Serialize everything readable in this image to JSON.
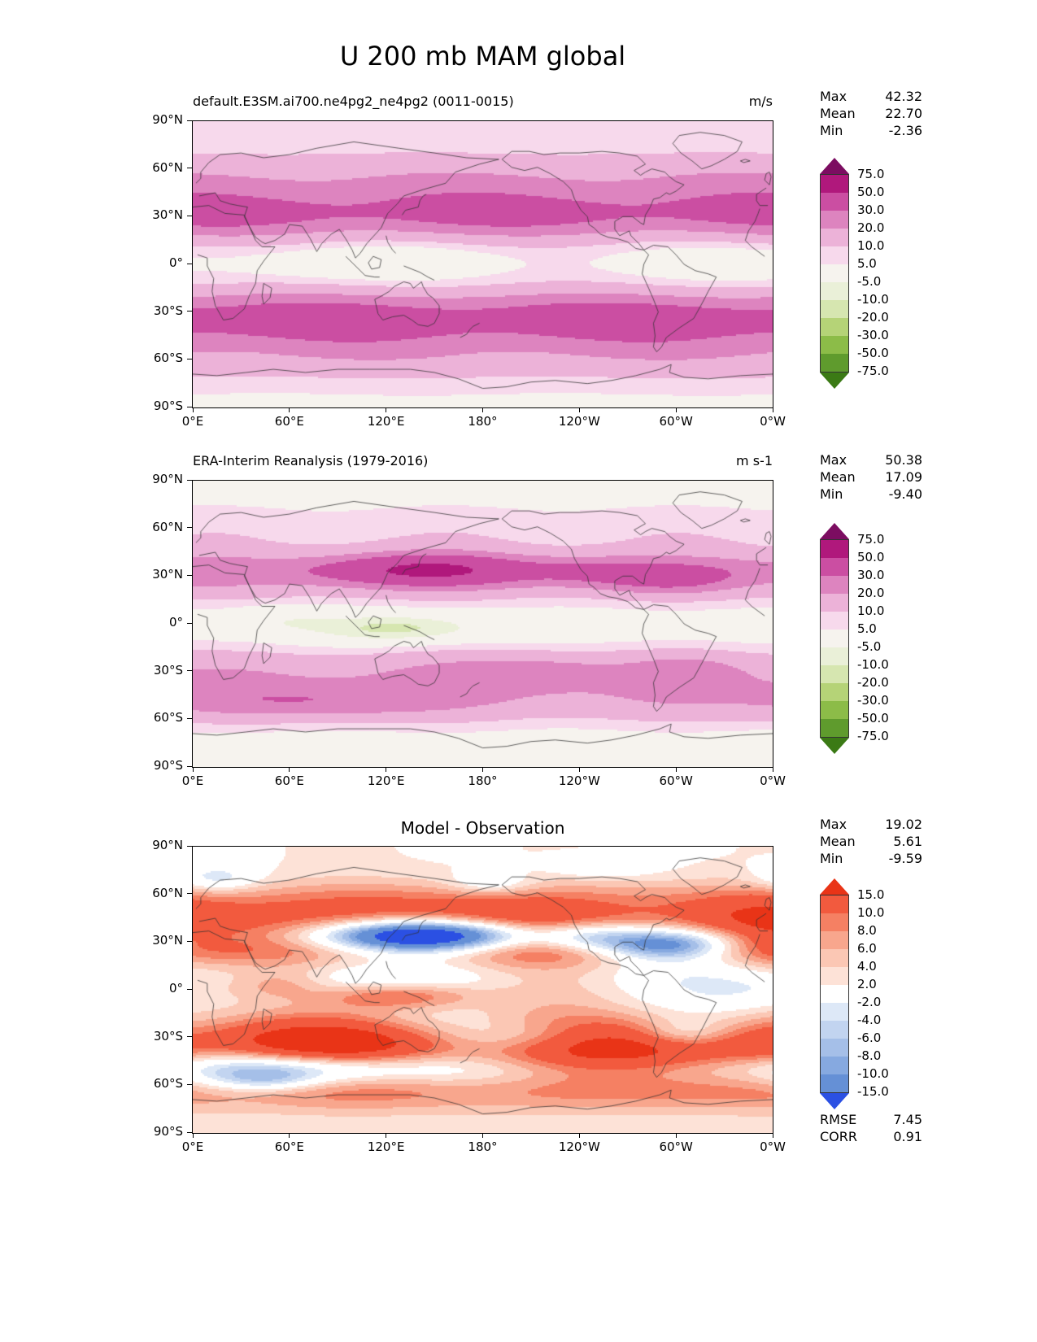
{
  "title": "U 200 mb MAM global",
  "axes": {
    "lon_ticks": [
      {
        "deg": 0,
        "label": "0°E"
      },
      {
        "deg": 60,
        "label": "60°E"
      },
      {
        "deg": 120,
        "label": "120°E"
      },
      {
        "deg": 180,
        "label": "180°"
      },
      {
        "deg": 240,
        "label": "120°W"
      },
      {
        "deg": 300,
        "label": "60°W"
      },
      {
        "deg": 360,
        "label": "0°W"
      }
    ],
    "lat_ticks": [
      {
        "deg": 90,
        "label": "90°N"
      },
      {
        "deg": 60,
        "label": "60°N"
      },
      {
        "deg": 30,
        "label": "30°N"
      },
      {
        "deg": 0,
        "label": "0°"
      },
      {
        "deg": -30,
        "label": "30°S"
      },
      {
        "deg": -60,
        "label": "60°S"
      },
      {
        "deg": -90,
        "label": "90°S"
      }
    ]
  },
  "colormaps": {
    "pink_green": {
      "levels_ascending": [
        -75,
        -50,
        -30,
        -20,
        -10,
        -5,
        5,
        10,
        20,
        30,
        50,
        75
      ],
      "labels_top_to_bottom": [
        "75.0",
        "50.0",
        "30.0",
        "20.0",
        "10.0",
        "5.0",
        "-5.0",
        "-10.0",
        "-20.0",
        "-30.0",
        "-50.0",
        "-75.0"
      ],
      "colors_top_to_bottom": [
        "#7c0d61",
        "#b0187c",
        "#cb4ea2",
        "#dd84bf",
        "#ecb2d8",
        "#f7d9ec",
        "#f6f3ee",
        "#eaf0d8",
        "#d6e6b0",
        "#b5d377",
        "#8cbc48",
        "#5f9b2d",
        "#3b7a15"
      ]
    },
    "red_blue": {
      "levels_ascending": [
        -15,
        -10,
        -8,
        -6,
        -4,
        -2,
        2,
        4,
        6,
        8,
        10,
        15
      ],
      "labels_top_to_bottom": [
        "15.0",
        "10.0",
        "8.0",
        "6.0",
        "4.0",
        "2.0",
        "-2.0",
        "-4.0",
        "-6.0",
        "-8.0",
        "-10.0",
        "-15.0"
      ],
      "colors_top_to_bottom": [
        "#e93417",
        "#f25a3e",
        "#f58063",
        "#f8a68d",
        "#fbc7b4",
        "#fde2d7",
        "#ffffff",
        "#dde8f7",
        "#c2d4f0",
        "#a5bfe8",
        "#86a9e0",
        "#6590d6",
        "#2b50e3"
      ]
    }
  },
  "panels": [
    {
      "title": "default.E3SM.ai700.ne4pg2_ne4pg2 (0011-0015)",
      "units": "m/s",
      "colormap": "pink_green",
      "field": "model",
      "stats": [
        {
          "label": "Max",
          "value": "42.32"
        },
        {
          "label": "Mean",
          "value": "22.70"
        },
        {
          "label": "Min",
          "value": "-2.36"
        }
      ]
    },
    {
      "title": "ERA-Interim Reanalysis (1979-2016)",
      "units": "m s-1",
      "colormap": "pink_green",
      "field": "obs",
      "stats": [
        {
          "label": "Max",
          "value": "50.38"
        },
        {
          "label": "Mean",
          "value": "17.09"
        },
        {
          "label": "Min",
          "value": "-9.40"
        }
      ]
    },
    {
      "title": "Model - Observation",
      "units": "",
      "colormap": "red_blue",
      "field": "diff",
      "stats": [
        {
          "label": "Max",
          "value": "19.02"
        },
        {
          "label": "Mean",
          "value": "5.61"
        },
        {
          "label": "Min",
          "value": "-9.59"
        }
      ],
      "metrics": [
        {
          "label": "RMSE",
          "value": "7.45"
        },
        {
          "label": "CORR",
          "value": "0.91"
        }
      ]
    }
  ],
  "chart_data": [
    {
      "type": "heatmap",
      "subtype": "filled_contour_global_map",
      "suptitle": "U 200 mb MAM global",
      "title": "default.E3SM.ai700.ne4pg2_ne4pg2 (0011-0015)",
      "units": "m/s",
      "variable": "zonal wind U at 200 mb, MAM mean",
      "lon_range": [
        0,
        360
      ],
      "lat_range": [
        -90,
        90
      ],
      "contour_levels": [
        -75,
        -50,
        -30,
        -20,
        -10,
        -5,
        5,
        10,
        20,
        30,
        50,
        75
      ],
      "stats": {
        "max": 42.32,
        "mean": 22.7,
        "min": -2.36
      },
      "zonal_mean_estimate": {
        "lat": [
          -90,
          -75,
          -60,
          -45,
          -30,
          -15,
          0,
          15,
          30,
          45,
          60,
          75,
          90
        ],
        "value": [
          2,
          6,
          16,
          30,
          37,
          14,
          0,
          11,
          34,
          21,
          17,
          7,
          5
        ]
      },
      "notable_features": [
        "broad subtropical westerly jet bands near 30°N and 35°S (30-50 m/s)",
        "near-zero winds along the equator and poles"
      ]
    },
    {
      "type": "heatmap",
      "subtype": "filled_contour_global_map",
      "suptitle": "U 200 mb MAM global",
      "title": "ERA-Interim Reanalysis (1979-2016)",
      "units": "m s-1",
      "variable": "zonal wind U at 200 mb, MAM mean",
      "lon_range": [
        0,
        360
      ],
      "lat_range": [
        -90,
        90
      ],
      "contour_levels": [
        -75,
        -50,
        -30,
        -20,
        -10,
        -5,
        5,
        10,
        20,
        30,
        50,
        75
      ],
      "stats": {
        "max": 50.38,
        "mean": 17.09,
        "min": -9.4
      },
      "zonal_mean_estimate": {
        "lat": [
          -90,
          -75,
          -60,
          -45,
          -30,
          -15,
          0,
          15,
          30,
          45,
          60,
          75,
          90
        ],
        "value": [
          2,
          5,
          12,
          26,
          27,
          10,
          -3,
          8,
          30,
          14,
          11,
          6,
          4
        ]
      },
      "notable_features": [
        "East Asian jet maximum >50 m/s near 35°N 140°E",
        "localized jet over North Atlantic near 30°N 65°W",
        "southern jet maximum over south Indian Ocean near 50°S",
        "easterlies (negative, green) over equatorial Indonesia"
      ]
    },
    {
      "type": "heatmap",
      "subtype": "filled_contour_global_map_difference",
      "suptitle": "U 200 mb MAM global",
      "title": "Model - Observation",
      "units": "m/s",
      "variable": "model minus reanalysis U 200 mb, MAM",
      "lon_range": [
        0,
        360
      ],
      "lat_range": [
        -90,
        90
      ],
      "contour_levels": [
        -15,
        -10,
        -8,
        -6,
        -4,
        -2,
        2,
        4,
        6,
        8,
        10,
        15
      ],
      "stats": {
        "max": 19.02,
        "mean": 5.61,
        "min": -9.59,
        "rmse": 7.45,
        "corr": 0.91
      },
      "zonal_mean_estimate": {
        "lat": [
          -90,
          -75,
          -60,
          -45,
          -30,
          -15,
          0,
          15,
          30,
          45,
          60,
          75,
          90
        ],
        "value": [
          0,
          1,
          3,
          4,
          9,
          5,
          3,
          3,
          3,
          7,
          6,
          1,
          1
        ]
      },
      "notable_features": [
        "widespread positive (red) bias 45-60°N and 10-35°S",
        "negative (blue) bias over NW Pacific near 30-35°N where observed jet is strongest",
        "scattered weak negative patches near 55-65°S and high northern latitudes"
      ]
    }
  ]
}
